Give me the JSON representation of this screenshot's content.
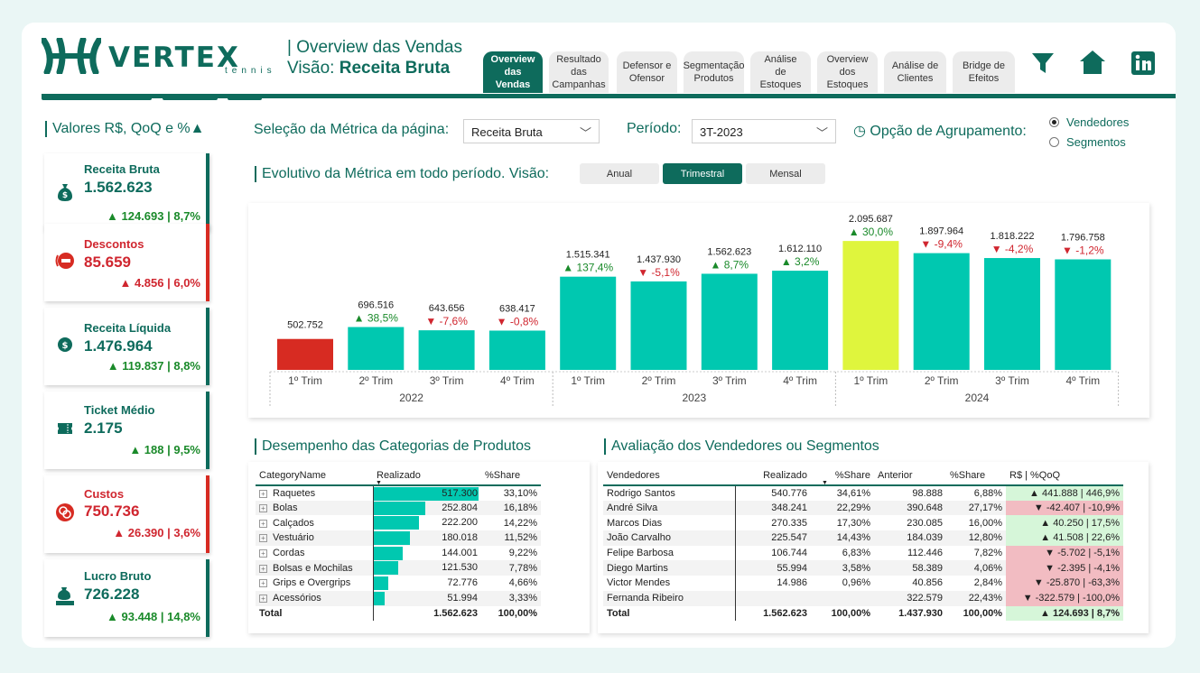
{
  "brand": {
    "name": "VERTEX",
    "sub": "tennis"
  },
  "header": {
    "title": "| Overview das Vendas",
    "visao_prefix": "Visão: ",
    "visao_value": "Receita Bruta"
  },
  "tabs": [
    {
      "label": "Overview das Vendas",
      "active": true
    },
    {
      "label": "Resultado das Campanhas"
    },
    {
      "label": "Defensor e Ofensor"
    },
    {
      "label": "Segmentação Produtos"
    },
    {
      "label": "Análise de Estoques"
    },
    {
      "label": "Overview dos Estoques"
    },
    {
      "label": "Análise de Clientes"
    },
    {
      "label": "Bridge de Efeitos"
    }
  ],
  "icons": {
    "filter": "filter-icon",
    "home": "home-icon",
    "linkedin": "linkedin-icon"
  },
  "kpi_title": "Valores R$, QoQ e %▲",
  "kpis": [
    {
      "label": "Receita Bruta",
      "value": "1.562.623",
      "variation": "▲ 124.693 | 8,7%",
      "status": "positive",
      "icon": "money-bag-icon"
    },
    {
      "label": "Descontos",
      "value": "85.659",
      "variation": "▲ 4.856 | 6,0%",
      "status": "negative",
      "icon": "no-entry-icon"
    },
    {
      "label": "Receita Líquida",
      "value": "1.476.964",
      "variation": "▲ 119.837 | 8,8%",
      "status": "positive",
      "icon": "dollar-coin-icon"
    },
    {
      "label": "Ticket Médio",
      "value": "2.175",
      "variation": "▲ 188 | 9,5%",
      "status": "positive",
      "icon": "ticket-icon"
    },
    {
      "label": "Custos",
      "value": "750.736",
      "variation": "▲ 26.390 | 3,6%",
      "status": "negative",
      "icon": "coins-icon"
    },
    {
      "label": "Lucro Bruto",
      "value": "726.228",
      "variation": "▲ 93.448 | 14,8%",
      "status": "positive",
      "icon": "money-stack-icon"
    }
  ],
  "colors": {
    "primary": "#0e6b5c",
    "bar": "#00c8b0",
    "bar_first": "#d72b22",
    "bar_highlight": "#dff53d",
    "positive": "#1a8a2a",
    "negative": "#d0262f"
  },
  "filters": {
    "metric_label": "Seleção da Métrica da página:",
    "metric_value": "Receita Bruta",
    "period_label": "Período:",
    "period_value": "3T-2023",
    "group_label": "◷ Opção de Agrupamento:",
    "group_options": [
      {
        "label": "Vendedores",
        "selected": true
      },
      {
        "label": "Segmentos",
        "selected": false
      }
    ]
  },
  "evolution": {
    "title": "Evolutivo da Métrica em todo período. Visão:",
    "views": [
      {
        "label": "Anual"
      },
      {
        "label": "Trimestral",
        "active": true
      },
      {
        "label": "Mensal"
      }
    ]
  },
  "chart_data": {
    "type": "bar",
    "categories": [
      "1º Trim",
      "2º Trim",
      "3º Trim",
      "4º Trim",
      "1º Trim",
      "2º Trim",
      "3º Trim",
      "4º Trim",
      "1º Trim",
      "2º Trim",
      "3º Trim",
      "4º Trim"
    ],
    "groups": [
      "2022",
      "2023",
      "2024"
    ],
    "values": [
      502752,
      696516,
      643656,
      638417,
      1515341,
      1437930,
      1562623,
      1612110,
      2095687,
      1897964,
      1818222,
      1796758
    ],
    "value_labels": [
      "502.752",
      "696.516",
      "643.656",
      "638.417",
      "1.515.341",
      "1.437.930",
      "1.562.623",
      "1.612.110",
      "2.095.687",
      "1.897.964",
      "1.818.222",
      "1.796.758"
    ],
    "variations": [
      "",
      "▲ 38,5%",
      "▼ -7,6%",
      "▼ -0,8%",
      "▲ 137,4%",
      "▼ -5,1%",
      "▲ 8,7%",
      "▲ 3,2%",
      "▲ 30,0%",
      "▼ -9,4%",
      "▼ -4,2%",
      "▼ -1,2%"
    ],
    "ylim": [
      0,
      2200000
    ]
  },
  "categories_table": {
    "title": "Desempenho das Categorias de Produtos",
    "headers": [
      "CategoryName",
      "Realizado",
      "%Share"
    ],
    "rows": [
      {
        "name": "Raquetes",
        "value": "517.300",
        "num": 517300,
        "share": "33,10%"
      },
      {
        "name": "Bolas",
        "value": "252.804",
        "num": 252804,
        "share": "16,18%"
      },
      {
        "name": "Calçados",
        "value": "222.200",
        "num": 222200,
        "share": "14,22%"
      },
      {
        "name": "Vestuário",
        "value": "180.018",
        "num": 180018,
        "share": "11,52%"
      },
      {
        "name": "Cordas",
        "value": "144.001",
        "num": 144001,
        "share": "9,22%"
      },
      {
        "name": "Bolsas e Mochilas",
        "value": "121.530",
        "num": 121530,
        "share": "7,78%"
      },
      {
        "name": "Grips e Overgrips",
        "value": "72.776",
        "num": 72776,
        "share": "4,66%"
      },
      {
        "name": "Acessórios",
        "value": "51.994",
        "num": 51994,
        "share": "3,33%"
      }
    ],
    "total": {
      "name": "Total",
      "value": "1.562.623",
      "share": "100,00%"
    }
  },
  "sellers_table": {
    "title": "Avaliação dos Vendedores ou Segmentos",
    "headers": [
      "Vendedores",
      "Realizado",
      "%Share",
      "Anterior",
      "%Share",
      "R$ | %QoQ"
    ],
    "rows": [
      {
        "name": "Rodrigo Santos",
        "real": "540.776",
        "share": "34,61%",
        "prev": "98.888",
        "pshare": "6,88%",
        "qoq": "▲ 441.888 | 446,9%",
        "status": "positive"
      },
      {
        "name": "André Silva",
        "real": "348.241",
        "share": "22,29%",
        "prev": "390.648",
        "pshare": "27,17%",
        "qoq": "▼ -42.407 | -10,9%",
        "status": "negative"
      },
      {
        "name": "Marcos Dias",
        "real": "270.335",
        "share": "17,30%",
        "prev": "230.085",
        "pshare": "16,00%",
        "qoq": "▲ 40.250 | 17,5%",
        "status": "positive"
      },
      {
        "name": "João Carvalho",
        "real": "225.547",
        "share": "14,43%",
        "prev": "184.039",
        "pshare": "12,80%",
        "qoq": "▲ 41.508 | 22,6%",
        "status": "positive"
      },
      {
        "name": "Felipe Barbosa",
        "real": "106.744",
        "share": "6,83%",
        "prev": "112.446",
        "pshare": "7,82%",
        "qoq": "▼ -5.702 | -5,1%",
        "status": "negative"
      },
      {
        "name": "Diego Martins",
        "real": "55.994",
        "share": "3,58%",
        "prev": "58.389",
        "pshare": "4,06%",
        "qoq": "▼ -2.395 | -4,1%",
        "status": "negative"
      },
      {
        "name": "Victor Mendes",
        "real": "14.986",
        "share": "0,96%",
        "prev": "40.856",
        "pshare": "2,84%",
        "qoq": "▼ -25.870 | -63,3%",
        "status": "negative"
      },
      {
        "name": "Fernanda Ribeiro",
        "real": "",
        "share": "",
        "prev": "322.579",
        "pshare": "22,43%",
        "qoq": "▼ -322.579 | -100,0%",
        "status": "negative"
      }
    ],
    "total": {
      "name": "Total",
      "real": "1.562.623",
      "share": "100,00%",
      "prev": "1.437.930",
      "pshare": "100,00%",
      "qoq": "▲ 124.693 | 8,7%",
      "status": "positive"
    }
  }
}
